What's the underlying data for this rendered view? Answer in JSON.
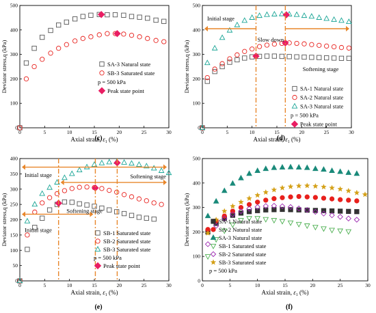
{
  "chart_data": [
    {
      "type": "scatter",
      "panel_label": "(c)",
      "xlabel_prefix": "Axial strain, ",
      "xlabel_symbol": "ε",
      "xlabel_sub": "1",
      "xlabel_unit": " (%)",
      "ylabel": "Deviator stress,q (kPa)",
      "xlim": [
        0,
        30
      ],
      "ylim": [
        0,
        500
      ],
      "xticks": [
        0,
        5,
        10,
        15,
        20,
        25,
        30
      ],
      "yticks": [
        0,
        100,
        200,
        300,
        400,
        500
      ],
      "series": [
        {
          "name": "SA-3 Natural state",
          "marker": "square",
          "color": "#555555",
          "x": [
            0,
            1.3,
            2.9,
            4.5,
            6.2,
            7.8,
            9.4,
            11.1,
            12.7,
            14.3,
            16,
            17.6,
            19.2,
            20.9,
            22.5,
            24.1,
            25.7,
            27.4,
            29
          ],
          "y": [
            0,
            265,
            325,
            370,
            398,
            420,
            432,
            445,
            455,
            460,
            463,
            462,
            462,
            460,
            455,
            452,
            448,
            440,
            435
          ]
        },
        {
          "name": "SB-3 Saturated state",
          "marker": "circle",
          "color": "#e8201c",
          "x": [
            0,
            1.3,
            2.9,
            4.5,
            6.2,
            7.8,
            9.4,
            11.1,
            12.7,
            14.3,
            16,
            17.6,
            19.2,
            20.9,
            22.5,
            24.1,
            25.7,
            27.4,
            29
          ],
          "y": [
            0,
            200,
            250,
            280,
            305,
            325,
            340,
            355,
            365,
            372,
            380,
            385,
            385,
            383,
            378,
            372,
            365,
            357,
            352
          ]
        },
        {
          "name": "Peak state point",
          "marker": "diamond-filled",
          "color": "#e91e63",
          "x": [
            16.4,
            19.6
          ],
          "y": [
            463,
            385
          ]
        }
      ],
      "annotations": {
        "pressure": "p = 500 kPa"
      }
    },
    {
      "type": "scatter",
      "panel_label": "(d)",
      "xlabel_prefix": "Axial strain, ",
      "xlabel_symbol": "ε",
      "xlabel_sub": "1",
      "xlabel_unit": " (%)",
      "ylabel": "Deviator stress,q (kPa)",
      "xlim": [
        0,
        30
      ],
      "ylim": [
        0,
        500
      ],
      "xticks": [
        0,
        5,
        10,
        15,
        20,
        25,
        30
      ],
      "yticks": [
        0,
        100,
        200,
        300,
        400,
        500
      ],
      "series": [
        {
          "name": "SA-1 Natural state",
          "marker": "square",
          "color": "#555555",
          "x": [
            0,
            1,
            2.5,
            4,
            5.5,
            7,
            8.5,
            10,
            11.5,
            13,
            14.5,
            16,
            17.5,
            19,
            20.5,
            22,
            23.5,
            25,
            26.5,
            28,
            29.5
          ],
          "y": [
            0,
            190,
            230,
            250,
            268,
            278,
            285,
            290,
            292,
            293,
            293,
            292,
            291,
            290,
            289,
            288,
            287,
            286,
            285,
            284,
            284
          ]
        },
        {
          "name": "SA-2 Natural state",
          "marker": "circle",
          "color": "#e8201c",
          "x": [
            0,
            1,
            2.5,
            4,
            5.5,
            7,
            8.5,
            10,
            11.5,
            13,
            14.5,
            16,
            17.5,
            19,
            20.5,
            22,
            23.5,
            25,
            26.5,
            28,
            29.5
          ],
          "y": [
            0,
            205,
            240,
            262,
            282,
            298,
            312,
            322,
            332,
            338,
            342,
            345,
            347,
            345,
            343,
            340,
            337,
            334,
            331,
            328,
            326
          ]
        },
        {
          "name": "SA-3 Natural state",
          "marker": "triangle",
          "color": "#1aa596",
          "x": [
            0,
            1,
            2.5,
            4,
            5.5,
            7,
            8.5,
            10,
            11.5,
            13,
            14.5,
            16,
            17.5,
            19,
            20.5,
            22,
            23.5,
            25,
            26.5,
            28,
            29.5
          ],
          "y": [
            0,
            265,
            325,
            368,
            398,
            420,
            438,
            450,
            458,
            462,
            464,
            465,
            464,
            462,
            458,
            455,
            450,
            446,
            442,
            438,
            433
          ]
        },
        {
          "name": "Peak state point",
          "marker": "diamond-filled",
          "color": "#e91e63",
          "x": [
            10.8,
            16.7,
            16.9
          ],
          "y": [
            293,
            347,
            462
          ]
        }
      ],
      "annotations": {
        "pressure": "p = 500 kPa",
        "initial_stage": "Initial stage",
        "slow_down": "Slow down",
        "softening_stage": "Softening stage"
      }
    },
    {
      "type": "scatter",
      "panel_label": "(e)",
      "xlabel_prefix": "Axial strain, ",
      "xlabel_symbol": "ε",
      "xlabel_sub": "1",
      "xlabel_unit": " (%)",
      "ylabel": "Deviator stress,q (kPa)",
      "xlim": [
        0,
        30
      ],
      "ylim": [
        0,
        400
      ],
      "xticks": [
        0,
        5,
        10,
        15,
        20,
        25,
        30
      ],
      "yticks": [
        0,
        50,
        100,
        150,
        200,
        250,
        300,
        350,
        400
      ],
      "series": [
        {
          "name": "SB-1 Saturated state",
          "marker": "square",
          "color": "#555555",
          "x": [
            0,
            1.5,
            3,
            4.5,
            6,
            7.5,
            9,
            10.5,
            12,
            13.5,
            15,
            16.5,
            18,
            19.5,
            21,
            22.5,
            24,
            25.5,
            27
          ],
          "y": [
            0,
            103,
            175,
            205,
            232,
            250,
            258,
            257,
            252,
            248,
            244,
            238,
            232,
            226,
            220,
            214,
            208,
            205,
            202
          ]
        },
        {
          "name": "SB-2 Saturated state",
          "marker": "circle",
          "color": "#e8201c",
          "x": [
            0,
            1.5,
            3,
            4.5,
            6,
            7.5,
            9,
            10.5,
            12,
            13.5,
            15,
            16.5,
            18,
            19.5,
            21,
            22.5,
            24,
            25.5,
            27,
            28.5
          ],
          "y": [
            0,
            150,
            225,
            255,
            272,
            285,
            295,
            302,
            306,
            307,
            305,
            302,
            296,
            290,
            282,
            275,
            268,
            262,
            255,
            250
          ]
        },
        {
          "name": "SB-3 Saturated state",
          "marker": "triangle",
          "color": "#1aa596",
          "x": [
            0,
            1.5,
            3,
            4.5,
            6,
            7.5,
            9,
            10.5,
            12,
            13.5,
            15,
            16.5,
            18,
            19.5,
            21,
            22.5,
            24,
            25.5,
            27,
            28.5,
            30
          ],
          "y": [
            0,
            195,
            250,
            285,
            305,
            322,
            337,
            350,
            362,
            372,
            380,
            385,
            388,
            389,
            387,
            384,
            380,
            375,
            368,
            360,
            353
          ]
        },
        {
          "name": "Peak state point",
          "marker": "diamond-filled",
          "color": "#e91e63",
          "x": [
            7.8,
            15.2,
            19.6
          ],
          "y": [
            254,
            304,
            386
          ]
        }
      ],
      "annotations": {
        "pressure": "p = 500 kPa",
        "initial_stage": "Initial stage",
        "softening_stage": "Softening stage"
      }
    },
    {
      "type": "scatter",
      "panel_label": "(f)",
      "xlabel_prefix": "Axial strain, ",
      "xlabel_symbol": "ε",
      "xlabel_sub": "1",
      "xlabel_unit": " (%)",
      "ylabel": "Deviator stress,q (kPa)",
      "xlim": [
        0,
        30
      ],
      "ylim": [
        0,
        500
      ],
      "xticks": [
        0,
        5,
        10,
        15,
        20,
        25,
        30
      ],
      "yticks": [
        0,
        100,
        200,
        300,
        400,
        500
      ],
      "series": [
        {
          "name": "SA-1 Natural state",
          "marker": "square-filled",
          "color": "#333333",
          "x": [
            1,
            2.5,
            4,
            5.5,
            7,
            8.5,
            10,
            11.5,
            13,
            14.5,
            16,
            17.5,
            19,
            20.5,
            22,
            23.5,
            25,
            26.5,
            28
          ],
          "y": [
            200,
            235,
            255,
            268,
            277,
            283,
            287,
            290,
            291,
            292,
            291,
            290,
            289,
            288,
            287,
            286,
            285,
            284,
            283
          ]
        },
        {
          "name": "SA-2 Natural state",
          "marker": "circle-filled",
          "color": "#e8201c",
          "x": [
            1,
            2.5,
            4,
            5.5,
            7,
            8.5,
            10,
            11.5,
            13,
            14.5,
            16,
            17.5,
            19,
            20.5,
            22,
            23.5,
            25,
            26.5,
            28
          ],
          "y": [
            210,
            245,
            265,
            285,
            300,
            312,
            322,
            330,
            336,
            340,
            343,
            345,
            343,
            341,
            338,
            335,
            332,
            330,
            327
          ]
        },
        {
          "name": "SA-3 Natural state",
          "marker": "triangle-filled",
          "color": "#1a8a7a",
          "x": [
            1,
            2.5,
            4,
            5.5,
            7,
            8.5,
            10,
            11.5,
            13,
            14.5,
            16,
            17.5,
            19,
            20.5,
            22,
            23.5,
            25,
            26.5,
            28
          ],
          "y": [
            265,
            325,
            368,
            398,
            420,
            438,
            450,
            458,
            462,
            464,
            465,
            464,
            462,
            458,
            455,
            450,
            446,
            442,
            438
          ]
        },
        {
          "name": "SB-1 Saturated state",
          "marker": "triangle-down",
          "color": "#4caf50",
          "x": [
            1,
            2.5,
            4,
            5.5,
            7,
            8.5,
            10,
            11.5,
            13,
            14.5,
            16,
            17.5,
            19,
            20.5,
            22,
            23.5,
            25,
            26.5
          ],
          "y": [
            100,
            170,
            205,
            230,
            248,
            256,
            256,
            252,
            248,
            244,
            238,
            232,
            226,
            220,
            214,
            208,
            205,
            202
          ]
        },
        {
          "name": "SB-2 Saturated state",
          "marker": "diamond",
          "color": "#9c27b0",
          "x": [
            1,
            2.5,
            4,
            5.5,
            7,
            8.5,
            10,
            11.5,
            13,
            14.5,
            16,
            17.5,
            19,
            20.5,
            22,
            23.5,
            25,
            26.5,
            28
          ],
          "y": [
            150,
            225,
            255,
            272,
            285,
            295,
            302,
            306,
            307,
            305,
            302,
            296,
            290,
            282,
            275,
            268,
            262,
            255,
            250
          ]
        },
        {
          "name": "SB-3 Saturated state",
          "marker": "star",
          "color": "#d4a017",
          "x": [
            1,
            2.5,
            4,
            5.5,
            7,
            8.5,
            10,
            11.5,
            13,
            14.5,
            16,
            17.5,
            19,
            20.5,
            22,
            23.5,
            25,
            26.5,
            28,
            29.5
          ],
          "y": [
            195,
            250,
            285,
            305,
            322,
            337,
            350,
            362,
            372,
            380,
            385,
            388,
            389,
            387,
            384,
            380,
            375,
            368,
            360,
            353
          ]
        }
      ],
      "annotations": {
        "pressure": "p = 500 kPa"
      }
    }
  ]
}
